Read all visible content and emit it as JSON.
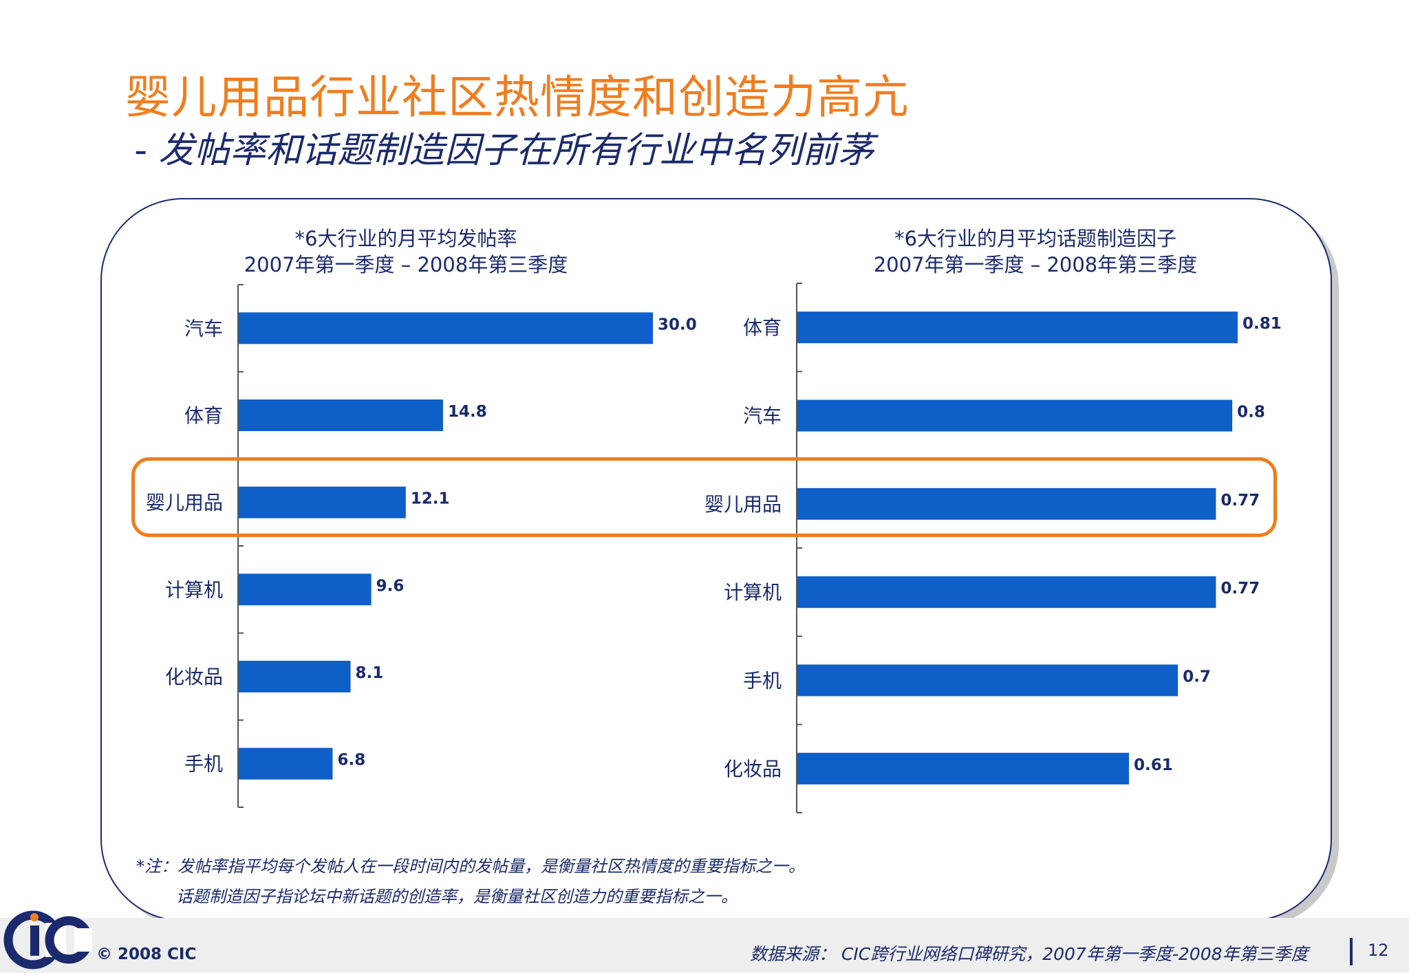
{
  "title": "婴儿用品行业社区热情度和创造力高亢",
  "subtitle": "- 发帖率和话题制造因子在所有行业中名列前茅",
  "chart_data": [
    {
      "type": "bar",
      "orientation": "horizontal",
      "title_line1": "*6大行业的月平均发帖率",
      "title_line2": "2007年第一季度 – 2008年第三季度",
      "categories": [
        "汽车",
        "体育",
        "婴儿用品",
        "计算机",
        "化妆品",
        "手机"
      ],
      "values": [
        30.0,
        14.8,
        12.1,
        9.6,
        8.1,
        6.8
      ],
      "value_labels": [
        "30.0",
        "14.8",
        "12.1",
        "9.6",
        "8.1",
        "6.8"
      ],
      "xlim": [
        0,
        30.0
      ],
      "bar_color": "#0F5FC8",
      "highlight": "婴儿用品"
    },
    {
      "type": "bar",
      "orientation": "horizontal",
      "title_line1": "*6大行业的月平均话题制造因子",
      "title_line2": "2007年第一季度 – 2008年第三季度",
      "categories": [
        "体育",
        "汽车",
        "婴儿用品",
        "计算机",
        "手机",
        "化妆品"
      ],
      "values": [
        0.81,
        0.8,
        0.77,
        0.77,
        0.7,
        0.61
      ],
      "value_labels": [
        "0.81",
        "0.8",
        "0.77",
        "0.77",
        "0.7",
        "0.61"
      ],
      "xlim": [
        0,
        0.81
      ],
      "bar_color": "#0F5FC8",
      "highlight": "婴儿用品"
    }
  ],
  "notes": {
    "line1": "*注：发帖率指平均每个发帖人在一段时间内的发帖量，是衡量社区热情度的重要指标之一。",
    "line2": "话题制造因子指论坛中新话题的创造率，是衡量社区创造力的重要指标之一。"
  },
  "footer": {
    "copyright": "© 2008  CIC",
    "source": "数据来源：  CIC跨行业网络口碑研究，2007年第一季度-2008年第三季度",
    "page_number": "12"
  },
  "logo": {
    "text": "CIC",
    "icon": "cic-logo-icon"
  },
  "colors": {
    "accent": "#F07D1E",
    "navy": "#1a2a6c",
    "bar": "#0F5FC8"
  }
}
